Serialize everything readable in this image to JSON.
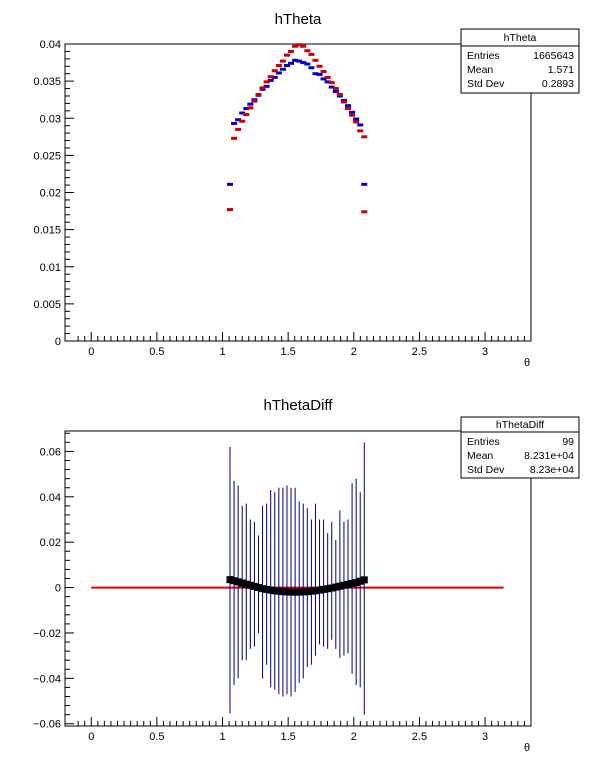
{
  "chart_data": [
    {
      "type": "scatter",
      "title": "hTheta",
      "xlabel": "θ",
      "ylabel": "",
      "xlim": [
        -0.2,
        3.35
      ],
      "ylim": [
        0,
        0.04
      ],
      "xticks": [
        "0",
        "0.5",
        "1",
        "1.5",
        "2",
        "2.5",
        "3"
      ],
      "yticks": [
        "0",
        "0.005",
        "0.01",
        "0.015",
        "0.02",
        "0.025",
        "0.03",
        "0.035",
        "0.04"
      ],
      "stats": {
        "name": "hTheta",
        "rows": [
          {
            "label": "Entries",
            "value": "1665643"
          },
          {
            "label": "Mean",
            "value": "1.571"
          },
          {
            "label": "Std Dev",
            "value": "0.2893"
          }
        ]
      },
      "series": [
        {
          "color": "#0000cc",
          "x": [
            1.057,
            1.088,
            1.119,
            1.15,
            1.181,
            1.212,
            1.243,
            1.274,
            1.305,
            1.336,
            1.367,
            1.398,
            1.429,
            1.46,
            1.491,
            1.522,
            1.553,
            1.584,
            1.615,
            1.646,
            1.677,
            1.708,
            1.739,
            1.77,
            1.801,
            1.832,
            1.863,
            1.894,
            1.925,
            1.956,
            1.987,
            2.018,
            2.049,
            2.08
          ],
          "y": [
            0.0211,
            0.0293,
            0.0298,
            0.0307,
            0.0313,
            0.0319,
            0.0325,
            0.0331,
            0.0339,
            0.0343,
            0.0351,
            0.0355,
            0.0361,
            0.0366,
            0.0371,
            0.0374,
            0.0378,
            0.0377,
            0.0375,
            0.0373,
            0.0368,
            0.036,
            0.0359,
            0.0353,
            0.0349,
            0.0342,
            0.0336,
            0.033,
            0.0324,
            0.0317,
            0.0308,
            0.0299,
            0.0291,
            0.0211
          ]
        },
        {
          "color": "#cc0000",
          "x": [
            1.057,
            1.088,
            1.119,
            1.15,
            1.181,
            1.212,
            1.243,
            1.274,
            1.305,
            1.336,
            1.367,
            1.398,
            1.429,
            1.46,
            1.491,
            1.522,
            1.553,
            1.584,
            1.615,
            1.646,
            1.677,
            1.708,
            1.739,
            1.77,
            1.801,
            1.832,
            1.863,
            1.894,
            1.925,
            1.956,
            1.987,
            2.018,
            2.049,
            2.08
          ],
          "y": [
            0.0177,
            0.0273,
            0.0285,
            0.0296,
            0.0305,
            0.0314,
            0.0323,
            0.0332,
            0.0341,
            0.0349,
            0.0356,
            0.0364,
            0.0371,
            0.0377,
            0.0385,
            0.039,
            0.0397,
            0.0399,
            0.0397,
            0.0391,
            0.0386,
            0.0378,
            0.037,
            0.0363,
            0.0355,
            0.0348,
            0.034,
            0.0332,
            0.0322,
            0.0313,
            0.0304,
            0.0295,
            0.0283,
            0.0275
          ]
        },
        {
          "color": "#cc0000",
          "x": [
            2.08
          ],
          "y": [
            0.0174
          ]
        }
      ]
    },
    {
      "type": "scatter",
      "title": "hThetaDiff",
      "xlabel": "θ",
      "ylabel": "",
      "xlim": [
        -0.2,
        3.35
      ],
      "ylim": [
        -0.061,
        0.069
      ],
      "xticks": [
        "0",
        "0.5",
        "1",
        "1.5",
        "2",
        "2.5",
        "3"
      ],
      "yticks": [
        "−0.06",
        "−0.04",
        "−0.02",
        "0",
        "0.02",
        "0.04",
        "0.06"
      ],
      "stats": {
        "name": "hThetaDiff",
        "rows": [
          {
            "label": "Entries",
            "value": "99"
          },
          {
            "label": "Mean",
            "value": "8.231e+04"
          },
          {
            "label": "Std Dev",
            "value": "8.23e+04"
          }
        ]
      },
      "points": {
        "x": [
          1.057,
          1.088,
          1.119,
          1.15,
          1.181,
          1.212,
          1.243,
          1.274,
          1.305,
          1.336,
          1.367,
          1.398,
          1.429,
          1.46,
          1.491,
          1.522,
          1.553,
          1.584,
          1.615,
          1.646,
          1.677,
          1.708,
          1.739,
          1.77,
          1.801,
          1.832,
          1.863,
          1.894,
          1.925,
          1.956,
          1.987,
          2.018,
          2.049,
          2.08
        ],
        "y": [
          0.0035,
          0.003,
          0.0025,
          0.002,
          0.0015,
          0.001,
          0.0005,
          0.0,
          -0.0005,
          -0.0008,
          -0.0011,
          -0.0014,
          -0.0016,
          -0.0018,
          -0.0019,
          -0.002,
          -0.002,
          -0.002,
          -0.0019,
          -0.0018,
          -0.0016,
          -0.0014,
          -0.0011,
          -0.0008,
          -0.0005,
          -0.0002,
          0.0002,
          0.0006,
          0.001,
          0.0014,
          0.0018,
          0.0022,
          0.0028,
          0.0034
        ],
        "err_hi": [
          0.062,
          0.047,
          0.045,
          0.036,
          0.037,
          0.03,
          0.029,
          0.023,
          0.036,
          0.037,
          0.043,
          0.042,
          0.044,
          0.044,
          0.045,
          0.044,
          0.044,
          0.038,
          0.037,
          0.035,
          0.03,
          0.037,
          0.03,
          0.03,
          0.024,
          0.029,
          0.021,
          0.034,
          0.029,
          0.03,
          0.046,
          0.048,
          0.042,
          0.064
        ],
        "err_lo": [
          -0.0555,
          -0.043,
          -0.04,
          -0.032,
          -0.032,
          -0.027,
          -0.026,
          -0.02,
          -0.04,
          -0.034,
          -0.044,
          -0.045,
          -0.047,
          -0.048,
          -0.047,
          -0.048,
          -0.046,
          -0.042,
          -0.04,
          -0.035,
          -0.034,
          -0.03,
          -0.025,
          -0.026,
          -0.027,
          -0.023,
          -0.027,
          -0.031,
          -0.03,
          -0.029,
          -0.038,
          -0.043,
          -0.044,
          -0.056
        ],
        "color": "#000000",
        "error_color": "#000080"
      },
      "reference_line": {
        "y": 0,
        "x_from": 0,
        "x_to": 3.1416,
        "color": "#dd0000"
      }
    }
  ]
}
